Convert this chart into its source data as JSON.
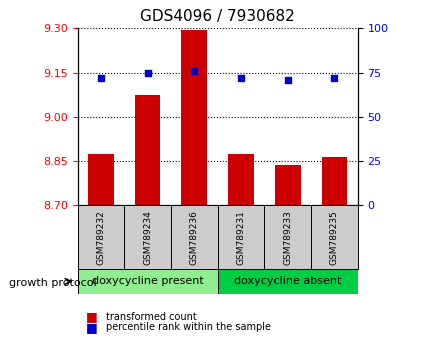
{
  "title": "GDS4096 / 7930682",
  "samples": [
    "GSM789232",
    "GSM789234",
    "GSM789236",
    "GSM789231",
    "GSM789233",
    "GSM789235"
  ],
  "bar_values": [
    8.875,
    9.075,
    9.295,
    8.875,
    8.835,
    8.865
  ],
  "percentile_values": [
    72,
    75,
    76,
    72,
    71,
    72
  ],
  "ylim_left": [
    8.7,
    9.3
  ],
  "ylim_right": [
    0,
    100
  ],
  "yticks_left": [
    8.7,
    8.85,
    9.0,
    9.15,
    9.3
  ],
  "yticks_right": [
    0,
    25,
    50,
    75,
    100
  ],
  "bar_color": "#cc0000",
  "dot_color": "#0000cc",
  "group1_label": "doxycycline present",
  "group2_label": "doxycycline absent",
  "group1_indices": [
    0,
    1,
    2
  ],
  "group2_indices": [
    3,
    4,
    5
  ],
  "group_label": "growth protocol",
  "group_bg1": "#90ee90",
  "group_bg2": "#00cc44",
  "tick_bg": "#cccccc",
  "legend_bar_label": "transformed count",
  "legend_dot_label": "percentile rank within the sample",
  "hline_style": "dotted",
  "hline_color": "black"
}
